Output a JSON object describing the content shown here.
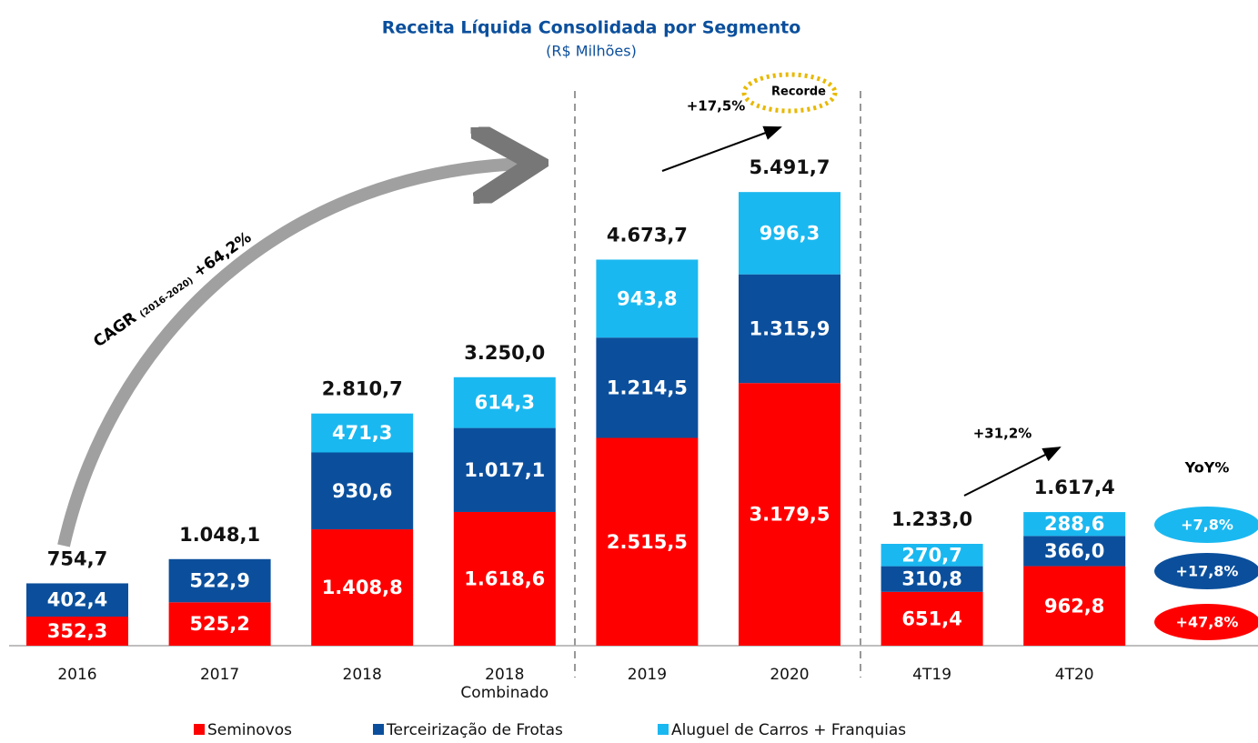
{
  "chart_data": {
    "type": "stacked_bar",
    "title": "Receita Líquida Consolidada por Segmento",
    "subtitle": "(R$ Milhões)",
    "categories": [
      "2016",
      "2017",
      "2018",
      "2018 Combinado",
      "2019",
      "2020",
      "4T19",
      "4T20"
    ],
    "series": [
      {
        "name": "Seminovos",
        "color": "#ff0000",
        "values": [
          352.3,
          525.2,
          1408.8,
          1618.6,
          2515.5,
          3179.5,
          651.4,
          962.8
        ],
        "value_labels": [
          "352,3",
          "525,2",
          "1.408,8",
          "1.618,6",
          "2.515,5",
          "3.179,5",
          "651,4",
          "962,8"
        ]
      },
      {
        "name": "Terceirização de Frotas",
        "color": "#0b4f9c",
        "values": [
          402.4,
          522.9,
          930.6,
          1017.1,
          1214.5,
          1315.9,
          310.8,
          366.0
        ],
        "value_labels": [
          "402,4",
          "522,9",
          "930,6",
          "1.017,1",
          "1.214,5",
          "1.315,9",
          "310,8",
          "366,0"
        ]
      },
      {
        "name": "Aluguel de Carros + Franquias",
        "color": "#1ab8f0",
        "values": [
          null,
          null,
          471.3,
          614.3,
          943.8,
          996.3,
          270.7,
          288.6
        ],
        "value_labels": [
          null,
          null,
          "471,3",
          "614,3",
          "943,8",
          "996,3",
          "270,7",
          "288,6"
        ]
      }
    ],
    "totals": [
      754.7,
      1048.1,
      2810.7,
      3250.0,
      4673.7,
      5491.7,
      1233.0,
      1617.4
    ],
    "total_labels": [
      "754,7",
      "1.048,1",
      "2.810,7",
      "3.250,0",
      "4.673,7",
      "5.491,7",
      "1.233,0",
      "1.617,4"
    ],
    "ylim": [
      0,
      6000
    ],
    "annotations": {
      "cagr": "CAGR",
      "cagr_period": "(2016-2020)",
      "cagr_value": "+64,2%",
      "growth_annual": "+17,5%",
      "record": "Recorde",
      "growth_quarter": "+31,2%",
      "yoy_title": "YoY%",
      "yoy": [
        "+7,8%",
        "+17,8%",
        "+47,8%"
      ]
    }
  }
}
